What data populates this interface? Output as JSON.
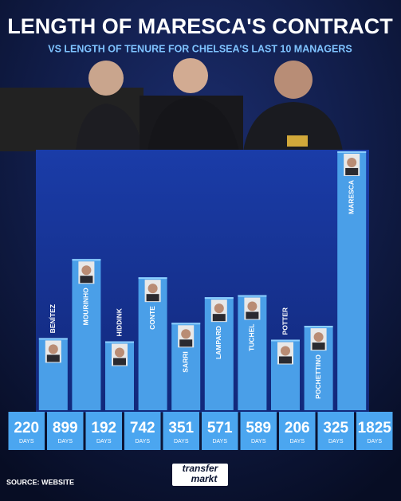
{
  "chart_data": {
    "type": "bar",
    "title": "LENGTH OF MARESCA'S CONTRACT",
    "subtitle": "VS LENGTH OF TENURE FOR CHELSEA'S LAST 10 MANAGERS",
    "categories": [
      "BENÍTEZ",
      "MOURINHO",
      "HIDDINK",
      "CONTE",
      "SARRI",
      "LAMPARD",
      "TUCHEL",
      "POTTER",
      "POCHETTINO",
      "MARESCA"
    ],
    "values": [
      220,
      899,
      192,
      742,
      351,
      571,
      589,
      206,
      325,
      1825
    ],
    "unit_label": "DAYS",
    "color": "#4a9fe8",
    "ylim": [
      -400,
      1900
    ],
    "source": "SOURCE: WEBSITE",
    "logo": [
      "transfer",
      "markt"
    ]
  }
}
